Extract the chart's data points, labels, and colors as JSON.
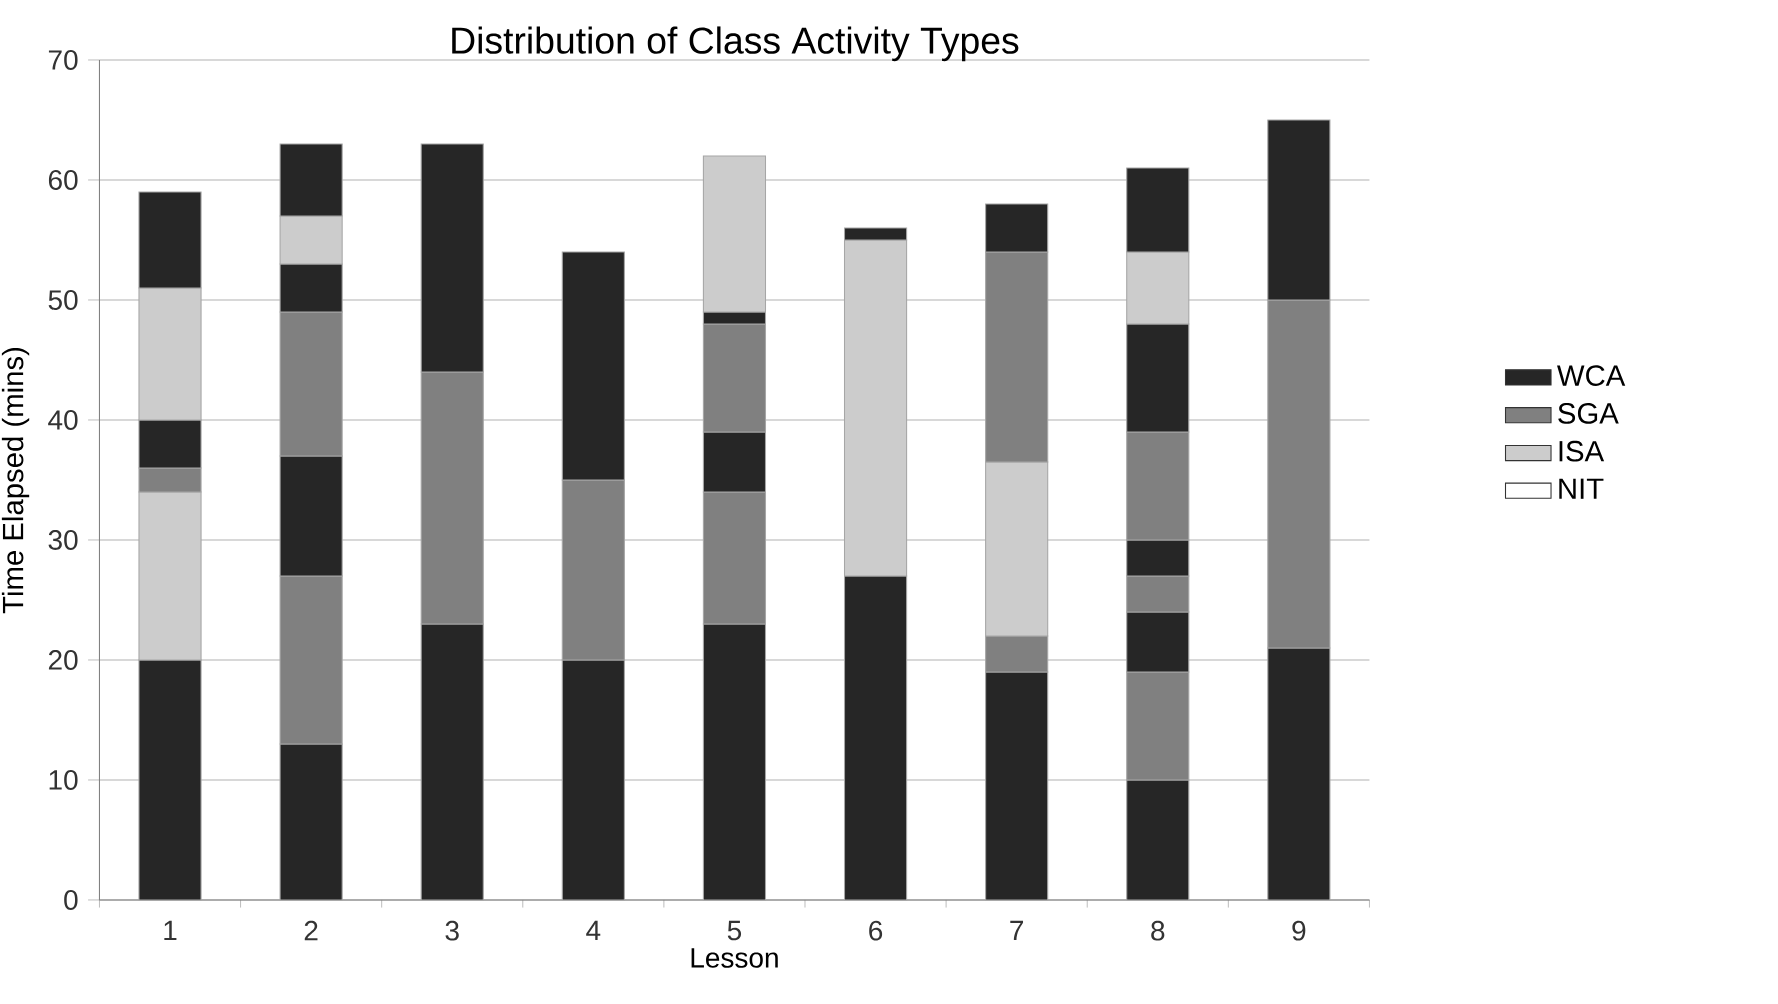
{
  "chart_data": {
    "type": "bar",
    "stacked": true,
    "title": "Distribution of Class Activity Types",
    "xlabel": "Lesson",
    "ylabel": "Time  Elapsed  (mins)",
    "categories": [
      "1",
      "2",
      "3",
      "4",
      "5",
      "6",
      "7",
      "8",
      "9"
    ],
    "ylim": [
      0,
      70
    ],
    "yticks": [
      0,
      10,
      20,
      30,
      40,
      50,
      60,
      70
    ],
    "grid": "y",
    "legend": "right",
    "series": [
      {
        "name": "WCA",
        "color": "#262626",
        "values": [
          null,
          null,
          null,
          null,
          null,
          null,
          null,
          null,
          null
        ]
      },
      {
        "name": "SGA",
        "color": "#808080",
        "values": [
          null,
          null,
          null,
          null,
          null,
          null,
          null,
          null,
          null
        ]
      },
      {
        "name": "ISA",
        "color": "#cccccc",
        "values": [
          null,
          null,
          null,
          null,
          null,
          null,
          null,
          null,
          null
        ]
      },
      {
        "name": "NIT",
        "color": "#ffffff",
        "values": [
          null,
          null,
          null,
          null,
          null,
          null,
          null,
          null,
          null
        ]
      },
      {
        "values": [
          20,
          13,
          23,
          20,
          23,
          27,
          19,
          10,
          21
        ],
        "colors": [
          "#262626",
          "#262626",
          "#262626",
          "#262626",
          "#262626",
          "#262626",
          "#262626",
          "#262626",
          "#262626"
        ]
      },
      {
        "values": [
          14,
          14,
          21,
          15,
          11,
          28,
          3,
          9,
          29
        ],
        "colors": [
          "#cccccc",
          "#808080",
          "#808080",
          "#808080",
          "#808080",
          "#cccccc",
          "#808080",
          "#808080",
          "#808080"
        ]
      },
      {
        "values": [
          2,
          10,
          19,
          19,
          5,
          1,
          14.5,
          5,
          15
        ],
        "colors": [
          "#808080",
          "#262626",
          "#262626",
          "#262626",
          "#262626",
          "#262626",
          "#cccccc",
          "#262626",
          "#262626"
        ]
      },
      {
        "values": [
          4,
          12,
          null,
          null,
          9,
          null,
          17.5,
          3,
          null
        ],
        "colors": [
          "#262626",
          "#808080",
          null,
          null,
          "#808080",
          null,
          "#808080",
          "#808080",
          null
        ]
      },
      {
        "values": [
          11,
          4,
          null,
          null,
          1,
          null,
          4,
          3,
          null
        ],
        "colors": [
          "#cccccc",
          "#262626",
          null,
          null,
          "#262626",
          null,
          "#262626",
          "#262626",
          null
        ]
      },
      {
        "values": [
          8,
          4,
          null,
          null,
          13,
          null,
          null,
          9,
          null
        ],
        "colors": [
          "#262626",
          "#cccccc",
          null,
          null,
          "#cccccc",
          null,
          null,
          "#808080",
          null
        ]
      },
      {
        "values": [
          null,
          6,
          null,
          null,
          null,
          null,
          null,
          9,
          null
        ],
        "colors": [
          null,
          "#262626",
          null,
          null,
          null,
          null,
          null,
          "#262626",
          null
        ]
      },
      {
        "values": [
          null,
          null,
          null,
          null,
          null,
          null,
          null,
          6,
          null
        ],
        "colors": [
          null,
          null,
          null,
          null,
          null,
          null,
          null,
          "#cccccc",
          null
        ]
      },
      {
        "values": [
          null,
          null,
          null,
          null,
          null,
          null,
          null,
          7,
          null
        ],
        "colors": [
          null,
          null,
          null,
          null,
          null,
          null,
          null,
          "#262626",
          null
        ]
      }
    ]
  }
}
